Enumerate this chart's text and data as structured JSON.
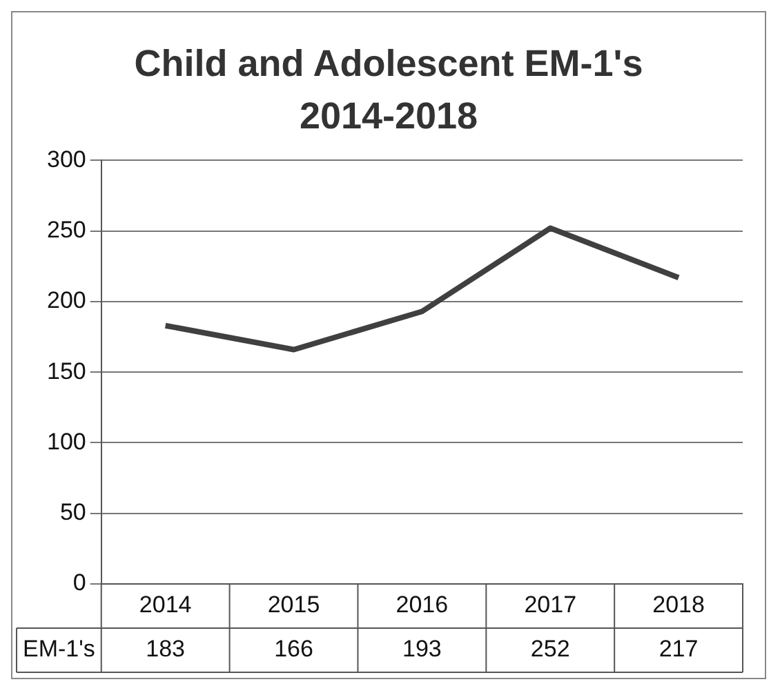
{
  "chart_data": {
    "type": "line",
    "title": "Child and Adolescent EM-1's 2014-2018",
    "categories": [
      "2014",
      "2015",
      "2016",
      "2017",
      "2018"
    ],
    "series": [
      {
        "name": "EM-1's",
        "color": "#404040",
        "values": [
          183,
          166,
          193,
          252,
          217
        ]
      }
    ],
    "ylim": [
      0,
      300
    ],
    "yticks": [
      0,
      50,
      100,
      150,
      200,
      250,
      300
    ],
    "grid": "y",
    "marker": "none",
    "line_style": "solid",
    "data_labels": true
  }
}
